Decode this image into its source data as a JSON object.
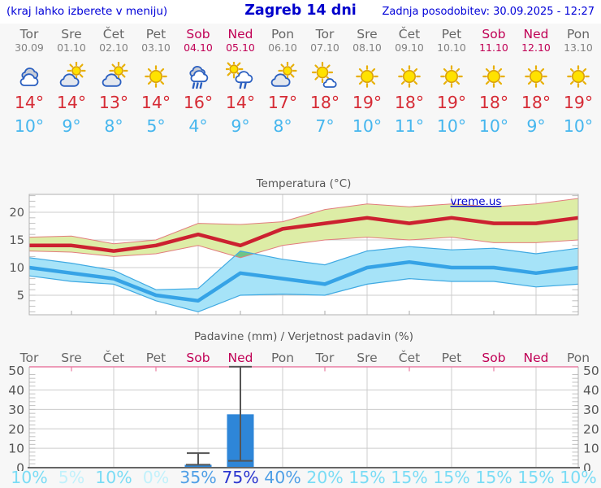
{
  "header": {
    "left_hint": "(kraj lahko izberete v meniju)",
    "title": "Zagreb 14 dni",
    "last_update": "Zadnja posodobitev: 30.09.2025 - 12:27"
  },
  "watermark": "vreme.us",
  "colors": {
    "link_blue": "#0000cc",
    "weekend": "#c00055",
    "day_gray": "#666666",
    "high_red": "#d62b35",
    "low_blue": "#45b6ee",
    "temp_line_red": "#cc2130",
    "temp_band_red": "#ddeda6",
    "temp_line_blue": "#36a3e6",
    "temp_band_blue": "#a6e3f8",
    "band_overlap_green": "#6fc487",
    "precip_bar": "#2e86d8",
    "chart_grid": "#cccccc",
    "precip_top_border": "#e87da2"
  },
  "days": [
    {
      "name": "Tor",
      "date": "30.09",
      "weekend": false,
      "icon": "cloudy",
      "high": "14°",
      "low": "10°"
    },
    {
      "name": "Sre",
      "date": "01.10",
      "weekend": false,
      "icon": "partly-cloudy",
      "high": "14°",
      "low": "9°"
    },
    {
      "name": "Čet",
      "date": "02.10",
      "weekend": false,
      "icon": "partly-cloudy",
      "high": "13°",
      "low": "8°"
    },
    {
      "name": "Pet",
      "date": "03.10",
      "weekend": false,
      "icon": "sunny",
      "high": "14°",
      "low": "5°"
    },
    {
      "name": "Sob",
      "date": "04.10",
      "weekend": true,
      "icon": "rain",
      "high": "16°",
      "low": "4°"
    },
    {
      "name": "Ned",
      "date": "05.10",
      "weekend": true,
      "icon": "sun-showers",
      "high": "14°",
      "low": "9°"
    },
    {
      "name": "Pon",
      "date": "06.10",
      "weekend": false,
      "icon": "partly-cloudy",
      "high": "17°",
      "low": "8°"
    },
    {
      "name": "Tor",
      "date": "07.10",
      "weekend": false,
      "icon": "mostly-sunny",
      "high": "18°",
      "low": "7°"
    },
    {
      "name": "Sre",
      "date": "08.10",
      "weekend": false,
      "icon": "sunny",
      "high": "19°",
      "low": "10°"
    },
    {
      "name": "Čet",
      "date": "09.10",
      "weekend": false,
      "icon": "sunny",
      "high": "18°",
      "low": "11°"
    },
    {
      "name": "Pet",
      "date": "10.10",
      "weekend": false,
      "icon": "sunny",
      "high": "19°",
      "low": "10°"
    },
    {
      "name": "Sob",
      "date": "11.10",
      "weekend": true,
      "icon": "sunny",
      "high": "18°",
      "low": "10°"
    },
    {
      "name": "Ned",
      "date": "12.10",
      "weekend": true,
      "icon": "sunny",
      "high": "18°",
      "low": "9°"
    },
    {
      "name": "Pon",
      "date": "13.10",
      "weekend": false,
      "icon": "sunny",
      "high": "19°",
      "low": "10°"
    }
  ],
  "chart_data": [
    {
      "type": "line",
      "title": "Temperatura (°C)",
      "categories": [
        "Tor 30.09",
        "Sre 01.10",
        "Čet 02.10",
        "Pet 03.10",
        "Sob 04.10",
        "Ned 05.10",
        "Pon 06.10",
        "Tor 07.10",
        "Sre 08.10",
        "Čet 09.10",
        "Pet 10.10",
        "Sob 11.10",
        "Ned 12.10",
        "Pon 13.10"
      ],
      "series": [
        {
          "name": "high",
          "values": [
            14,
            14,
            13,
            14,
            16,
            14,
            17,
            18,
            19,
            18,
            19,
            18,
            18,
            19
          ]
        },
        {
          "name": "high_band_upper",
          "values": [
            15.5,
            15.7,
            14.3,
            15,
            18,
            17.8,
            18.3,
            20.5,
            21.5,
            21,
            21.5,
            21,
            21.5,
            22.5
          ]
        },
        {
          "name": "high_band_lower",
          "values": [
            13,
            12.8,
            12,
            12.5,
            14,
            11.8,
            14,
            15,
            15.5,
            15,
            15.5,
            14.5,
            14.5,
            15
          ]
        },
        {
          "name": "low",
          "values": [
            10,
            9,
            8,
            5,
            4,
            9,
            8,
            7,
            10,
            11,
            10,
            10,
            9,
            10
          ]
        },
        {
          "name": "low_band_upper",
          "values": [
            11.8,
            10.8,
            9.5,
            6,
            6.2,
            13,
            11.5,
            10.5,
            13,
            13.8,
            13.2,
            13.5,
            12.5,
            13.5
          ]
        },
        {
          "name": "low_band_lower",
          "values": [
            8.5,
            7.5,
            7,
            4,
            2,
            5,
            5.2,
            5,
            7,
            8,
            7.5,
            7.5,
            6.5,
            7
          ]
        }
      ],
      "yticks": [
        5,
        10,
        15,
        20
      ],
      "ylim": [
        1.5,
        23.2
      ],
      "grid": true,
      "legend": "none"
    },
    {
      "type": "bar",
      "title": "Padavine (mm) / Verjetnost padavin (%)",
      "categories": [
        "Tor",
        "Sre",
        "Čet",
        "Pet",
        "Sob",
        "Ned",
        "Pon",
        "Tor",
        "Sre",
        "Čet",
        "Pet",
        "Sob",
        "Ned",
        "Pon"
      ],
      "values": [
        0,
        0,
        0,
        0,
        1.5,
        27.5,
        0,
        0,
        0,
        0,
        0,
        0,
        0,
        0
      ],
      "whiskers": [
        {
          "index": 4,
          "low": 1.5,
          "high": 7.5
        },
        {
          "index": 5,
          "low": 3.5,
          "high": 52
        }
      ],
      "probabilities": [
        10,
        5,
        10,
        0,
        35,
        75,
        40,
        20,
        15,
        15,
        15,
        15,
        15,
        10
      ],
      "probability_labels": [
        "10%",
        "5%",
        "10%",
        "0%",
        "35%",
        "75%",
        "40%",
        "20%",
        "15%",
        "15%",
        "15%",
        "15%",
        "15%",
        "10%"
      ],
      "yticks": [
        0,
        10,
        20,
        30,
        40,
        50
      ],
      "ylim": [
        0,
        52
      ],
      "grid": true
    }
  ]
}
